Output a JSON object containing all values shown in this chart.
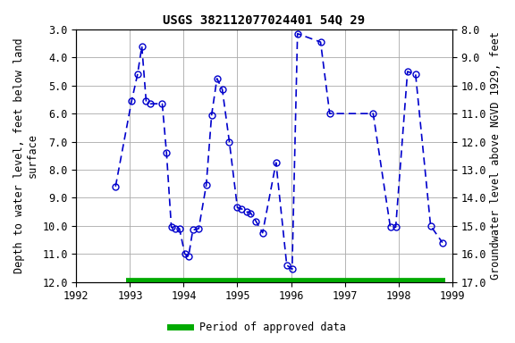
{
  "title": "USGS 382112077024401 54Q 29",
  "ylabel_left": "Depth to water level, feet below land\nsurface",
  "ylabel_right": "Groundwater level above NGVD 1929, feet",
  "xlim": [
    1992,
    1999
  ],
  "ylim_left": [
    12.0,
    3.0
  ],
  "ylim_right": [
    8.0,
    17.0
  ],
  "yticks_left": [
    3.0,
    4.0,
    5.0,
    6.0,
    7.0,
    8.0,
    9.0,
    10.0,
    11.0,
    12.0
  ],
  "yticks_right": [
    8.0,
    9.0,
    10.0,
    11.0,
    12.0,
    13.0,
    14.0,
    15.0,
    16.0,
    17.0
  ],
  "xticks": [
    1992,
    1993,
    1994,
    1995,
    1996,
    1997,
    1998,
    1999
  ],
  "data_x": [
    1992.73,
    1993.03,
    1993.14,
    1993.22,
    1993.3,
    1993.38,
    1993.6,
    1993.68,
    1993.77,
    1993.84,
    1993.92,
    1994.02,
    1994.09,
    1994.17,
    1994.28,
    1994.42,
    1994.52,
    1994.62,
    1994.72,
    1994.85,
    1995.0,
    1995.08,
    1995.17,
    1995.25,
    1995.35,
    1995.47,
    1995.72,
    1995.92,
    1996.02,
    1996.12,
    1996.55,
    1996.72,
    1997.53,
    1997.85,
    1997.95,
    1998.17,
    1998.32,
    1998.6,
    1998.82
  ],
  "data_y": [
    8.6,
    5.55,
    4.6,
    3.6,
    5.55,
    5.65,
    5.65,
    7.4,
    10.05,
    10.1,
    10.1,
    11.0,
    11.1,
    10.15,
    10.1,
    8.55,
    6.05,
    4.75,
    5.15,
    7.0,
    9.35,
    9.4,
    9.5,
    9.55,
    9.85,
    10.25,
    7.75,
    11.4,
    11.55,
    3.15,
    3.45,
    6.0,
    6.0,
    10.05,
    10.05,
    4.5,
    4.6,
    10.0,
    10.6
  ],
  "green_bar_xstart": 1992.92,
  "green_bar_xend": 1998.87,
  "green_bar_y": 12.0,
  "line_color": "#0000CC",
  "marker_facecolor": "none",
  "marker_edgecolor": "#0000CC",
  "green_color": "#00AA00",
  "background_color": "#ffffff",
  "grid_color": "#aaaaaa",
  "title_fontsize": 10,
  "axis_label_fontsize": 8.5,
  "tick_fontsize": 8.5,
  "legend_label": "Period of approved data",
  "marker_size": 5,
  "line_width": 1.2,
  "green_bar_linewidth": 7
}
